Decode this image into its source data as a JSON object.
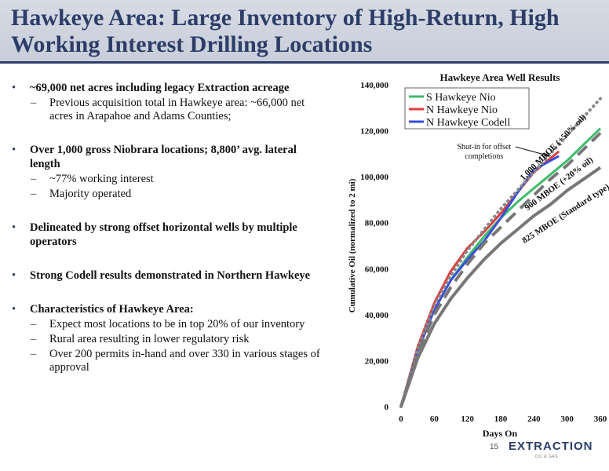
{
  "title": "Hawkeye Area: Large Inventory of High-Return, High Working Interest Drilling Locations",
  "bullets": [
    {
      "text": "~69,000 net acres including legacy Extraction acreage",
      "subs": [
        "Previous acquisition total in Hawkeye area: ~66,000 net acres in Arapahoe and Adams Counties;"
      ]
    },
    {
      "text": "Over 1,000 gross Niobrara locations; 8,800’ avg. lateral length",
      "subs": [
        "~77% working interest",
        "Majority operated"
      ]
    },
    {
      "text": "Delineated by strong offset horizontal wells by multiple operators",
      "subs": []
    },
    {
      "text": "Strong Codell results demonstrated in Northern Hawkeye",
      "subs": []
    },
    {
      "text": "Characteristics of Hawkeye Area:",
      "subs": [
        "Expect most locations to be in top 20% of our inventory",
        "Rural area resulting in lower regulatory risk",
        "Over 200 permits in-hand and over 330 in various stages of approval"
      ]
    }
  ],
  "page_number": "15",
  "logo_text": "EXTRACTION",
  "logo_sub": "OIL & GAS",
  "colors": {
    "title": "#2d3d68",
    "s_nio": "#3dbb6a",
    "n_nio": "#e03c3c",
    "n_codell": "#3a4fd6",
    "type_curve": "#777777"
  },
  "chart_data": {
    "type": "line",
    "title": "Hawkeye Area Well Results",
    "xlabel": "Days On",
    "ylabel": "Cumulative Oil (normalized to 2 mi)",
    "xlim": [
      0,
      360
    ],
    "ylim": [
      0,
      140000
    ],
    "xticks": [
      0,
      60,
      120,
      180,
      240,
      300,
      360
    ],
    "yticks": [
      0,
      20000,
      40000,
      60000,
      80000,
      100000,
      120000,
      140000
    ],
    "xtick_labels": [
      "0",
      "60",
      "120",
      "180",
      "240",
      "300",
      "360"
    ],
    "ytick_labels": [
      "0",
      "20,000",
      "40,000",
      "60,000",
      "80,000",
      "100,000",
      "120,000",
      "140,000"
    ],
    "grid": false,
    "legend_position": "top-left",
    "series": [
      {
        "name": "S Hawkeye Nio",
        "color": "#3dbb6a",
        "style": "solid",
        "x": [
          0,
          30,
          60,
          90,
          120,
          150,
          180,
          210,
          240,
          270,
          300,
          330,
          360
        ],
        "y": [
          0,
          25000,
          42000,
          55000,
          65000,
          74000,
          82000,
          89000,
          95000,
          101000,
          107000,
          114000,
          121000
        ]
      },
      {
        "name": "N Hawkeye Nio",
        "color": "#e03c3c",
        "style": "solid",
        "x": [
          0,
          30,
          60,
          90,
          120,
          150,
          180,
          210,
          240,
          270,
          285
        ],
        "y": [
          0,
          26000,
          45000,
          59000,
          69000,
          76000,
          84000,
          93000,
          102000,
          108000,
          111000
        ]
      },
      {
        "name": "N Hawkeye Codell",
        "color": "#3a4fd6",
        "style": "solid",
        "x": [
          0,
          30,
          60,
          90,
          120,
          150,
          180,
          210,
          240,
          270,
          285
        ],
        "y": [
          0,
          24000,
          42000,
          55000,
          64000,
          72000,
          82000,
          93000,
          103000,
          107000,
          109000
        ]
      },
      {
        "name": "",
        "color": "#888888",
        "style": "dotted",
        "x": [
          0,
          30,
          60,
          90,
          120,
          150,
          180,
          210,
          240,
          270,
          300,
          330,
          360
        ],
        "y": [
          0,
          25000,
          44000,
          57000,
          68000,
          77000,
          86000,
          94000,
          102000,
          110000,
          118000,
          126000,
          134000
        ]
      },
      {
        "name": "",
        "color": "#777777",
        "style": "dashed",
        "x": [
          0,
          30,
          60,
          90,
          120,
          150,
          180,
          210,
          240,
          270,
          300,
          330,
          360
        ],
        "y": [
          0,
          23000,
          40000,
          52000,
          62000,
          71000,
          78000,
          85000,
          92000,
          99000,
          105000,
          112000,
          119000
        ]
      },
      {
        "name": "",
        "color": "#777777",
        "style": "solid-thick",
        "x": [
          0,
          30,
          60,
          90,
          120,
          150,
          180,
          210,
          240,
          270,
          300,
          330,
          360
        ],
        "y": [
          0,
          21000,
          36000,
          47000,
          56000,
          64000,
          71000,
          77000,
          83000,
          88000,
          94000,
          99000,
          104000
        ]
      }
    ],
    "annotations": [
      {
        "text": "1,000 MBOE (+50% oil)",
        "x": 278,
        "y": 112000,
        "rotate": -45
      },
      {
        "text": "900 MBOE (+20% oil)",
        "x": 288,
        "y": 96000,
        "rotate": -37
      },
      {
        "text": "825 MBOE (Standard type)",
        "x": 300,
        "y": 83000,
        "rotate": -33
      }
    ],
    "callout": {
      "text": [
        "Shut-in for offset",
        "completions"
      ],
      "x": 150,
      "y": 112000,
      "arrow_to_x": 268,
      "arrow_to_y": 109000
    }
  }
}
